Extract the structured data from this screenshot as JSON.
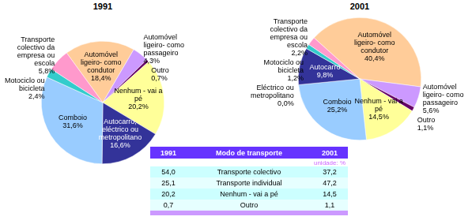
{
  "chart_data": [
    {
      "type": "pie",
      "title": "1991",
      "data_labels": true,
      "categories": [
        "Automóvel ligeiro- como condutor",
        "Automóvel ligeiro- como passageiro",
        "Outro",
        "Nenhum - vai a pé",
        "Autocarro, eléctrico ou metropolitano",
        "Comboio",
        "Motociclo ou bicicleta",
        "Transporte colectivo da empresa ou escola"
      ],
      "values": [
        18.4,
        4.3,
        0.7,
        20.2,
        16.6,
        31.6,
        2.4,
        5.8
      ],
      "value_labels": [
        "18,4%",
        "4,3%",
        "0,7%",
        "20,2%",
        "16,6%",
        "31,6%",
        "2,4%",
        "5,8%"
      ],
      "colors": [
        "#ffcc99",
        "#cc99ff",
        "#660066",
        "#ffff99",
        "#333399",
        "#99ccff",
        "#33cccc",
        "#ff99cc"
      ]
    },
    {
      "type": "pie",
      "title": "2001",
      "data_labels": true,
      "categories": [
        "Automóvel ligeiro- como condutor",
        "Automóvel ligeiro- como passageiro",
        "Outro",
        "Nenhum - vai a pé",
        "Comboio",
        "Eléctrico ou metropolitano",
        "Autocarro",
        "Motociclo ou bicicleta",
        "Transporte colectivo da empresa ou escola"
      ],
      "values": [
        40.4,
        5.6,
        1.1,
        14.5,
        25.2,
        0.0,
        9.8,
        1.2,
        2.2
      ],
      "value_labels": [
        "40,4%",
        "5,6%",
        "1,1%",
        "14,5%",
        "25,2%",
        "0,0%",
        "9,8%",
        "1,2%",
        "2,2%"
      ],
      "colors": [
        "#ffcc99",
        "#cc99ff",
        "#660066",
        "#ffff99",
        "#99ccff",
        "#0066cc",
        "#333399",
        "#33cccc",
        "#ff99cc"
      ]
    }
  ],
  "table": {
    "header": [
      "1991",
      "Modo de transporte",
      "2001"
    ],
    "unit": "unidade: %",
    "rows": [
      [
        "54,0",
        "Transporte colectivo",
        "37,2"
      ],
      [
        "25,1",
        "Transporte individual",
        "47,2"
      ],
      [
        "20,2",
        "Nenhum - vai a pé",
        "14,5"
      ],
      [
        "0,7",
        "Outro",
        "1,1"
      ]
    ]
  }
}
